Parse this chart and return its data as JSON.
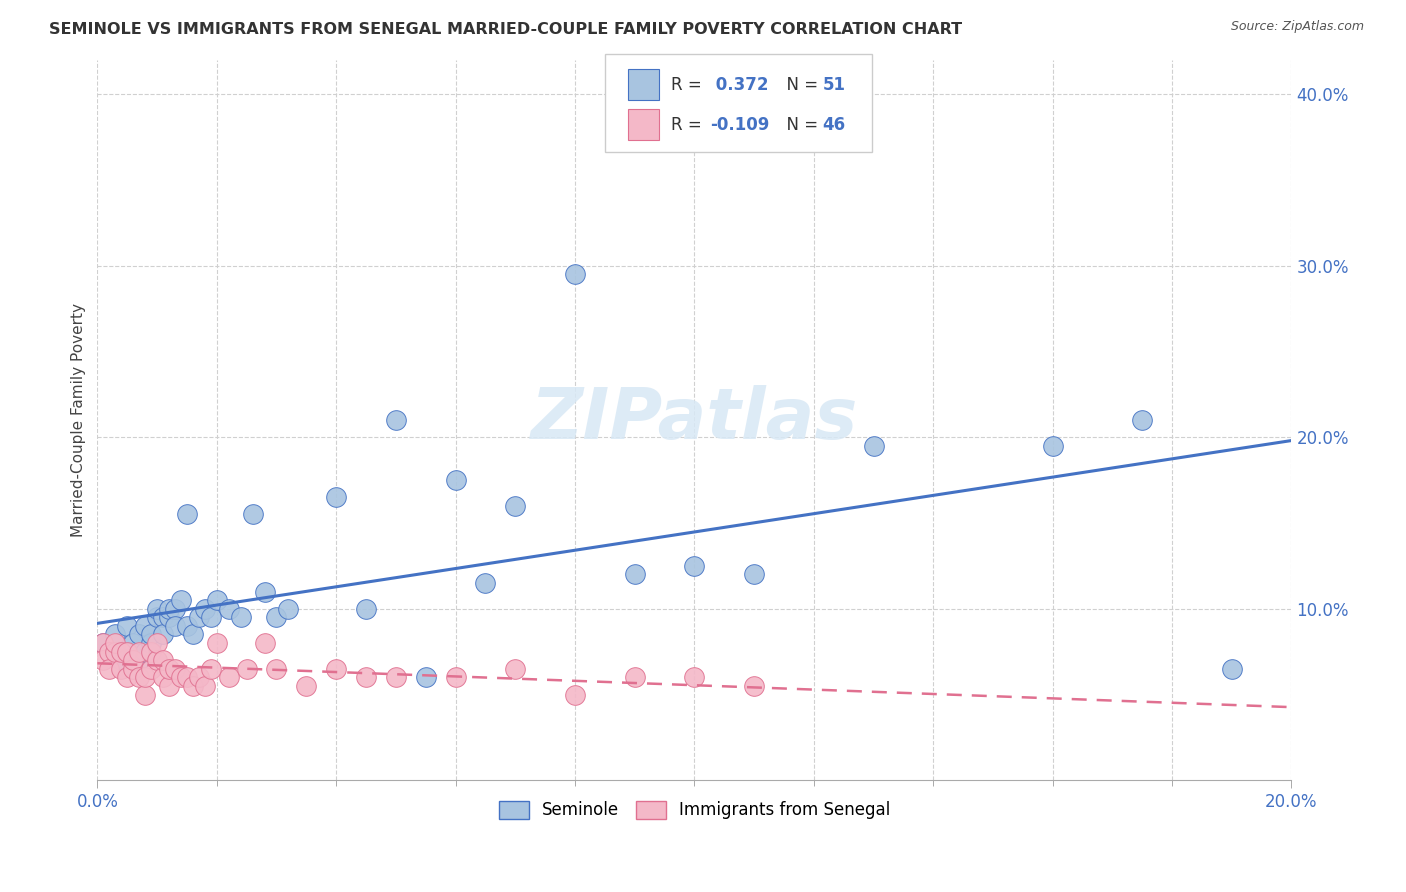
{
  "title": "SEMINOLE VS IMMIGRANTS FROM SENEGAL MARRIED-COUPLE FAMILY POVERTY CORRELATION CHART",
  "source": "Source: ZipAtlas.com",
  "ylabel": "Married-Couple Family Poverty",
  "xlim": [
    0.0,
    0.2
  ],
  "ylim": [
    0.0,
    0.42
  ],
  "x_ticks": [
    0.0,
    0.2
  ],
  "y_ticks": [
    0.1,
    0.2,
    0.3,
    0.4
  ],
  "color_blue": "#a8c4e0",
  "color_pink": "#f4b8c8",
  "line_blue": "#4472c4",
  "line_pink": "#e07090",
  "background_color": "#ffffff",
  "grid_color": "#d0d0d0",
  "seminole_x": [
    0.001,
    0.002,
    0.003,
    0.004,
    0.005,
    0.005,
    0.006,
    0.006,
    0.007,
    0.007,
    0.008,
    0.008,
    0.009,
    0.009,
    0.01,
    0.01,
    0.011,
    0.011,
    0.012,
    0.012,
    0.013,
    0.013,
    0.014,
    0.015,
    0.015,
    0.016,
    0.017,
    0.018,
    0.019,
    0.02,
    0.022,
    0.024,
    0.026,
    0.028,
    0.03,
    0.032,
    0.04,
    0.045,
    0.05,
    0.055,
    0.06,
    0.065,
    0.07,
    0.08,
    0.09,
    0.1,
    0.11,
    0.13,
    0.16,
    0.175,
    0.19
  ],
  "seminole_y": [
    0.08,
    0.075,
    0.085,
    0.07,
    0.075,
    0.09,
    0.075,
    0.08,
    0.07,
    0.085,
    0.075,
    0.09,
    0.08,
    0.085,
    0.095,
    0.1,
    0.095,
    0.085,
    0.095,
    0.1,
    0.1,
    0.09,
    0.105,
    0.09,
    0.155,
    0.085,
    0.095,
    0.1,
    0.095,
    0.105,
    0.1,
    0.095,
    0.155,
    0.11,
    0.095,
    0.1,
    0.165,
    0.1,
    0.21,
    0.06,
    0.175,
    0.115,
    0.16,
    0.295,
    0.12,
    0.125,
    0.12,
    0.195,
    0.195,
    0.21,
    0.065
  ],
  "senegal_x": [
    0.001,
    0.001,
    0.002,
    0.002,
    0.003,
    0.003,
    0.004,
    0.004,
    0.005,
    0.005,
    0.006,
    0.006,
    0.007,
    0.007,
    0.008,
    0.008,
    0.009,
    0.009,
    0.01,
    0.01,
    0.011,
    0.011,
    0.012,
    0.012,
    0.013,
    0.014,
    0.015,
    0.016,
    0.017,
    0.018,
    0.019,
    0.02,
    0.022,
    0.025,
    0.028,
    0.03,
    0.035,
    0.04,
    0.045,
    0.05,
    0.06,
    0.07,
    0.08,
    0.09,
    0.1,
    0.11
  ],
  "senegal_y": [
    0.08,
    0.07,
    0.075,
    0.065,
    0.075,
    0.08,
    0.065,
    0.075,
    0.06,
    0.075,
    0.065,
    0.07,
    0.06,
    0.075,
    0.05,
    0.06,
    0.065,
    0.075,
    0.07,
    0.08,
    0.06,
    0.07,
    0.055,
    0.065,
    0.065,
    0.06,
    0.06,
    0.055,
    0.06,
    0.055,
    0.065,
    0.08,
    0.06,
    0.065,
    0.08,
    0.065,
    0.055,
    0.065,
    0.06,
    0.06,
    0.06,
    0.065,
    0.05,
    0.06,
    0.06,
    0.055
  ],
  "R_blue": 0.372,
  "N_blue": 51,
  "R_pink": -0.109,
  "N_pink": 46,
  "watermark": "ZIPatlas"
}
